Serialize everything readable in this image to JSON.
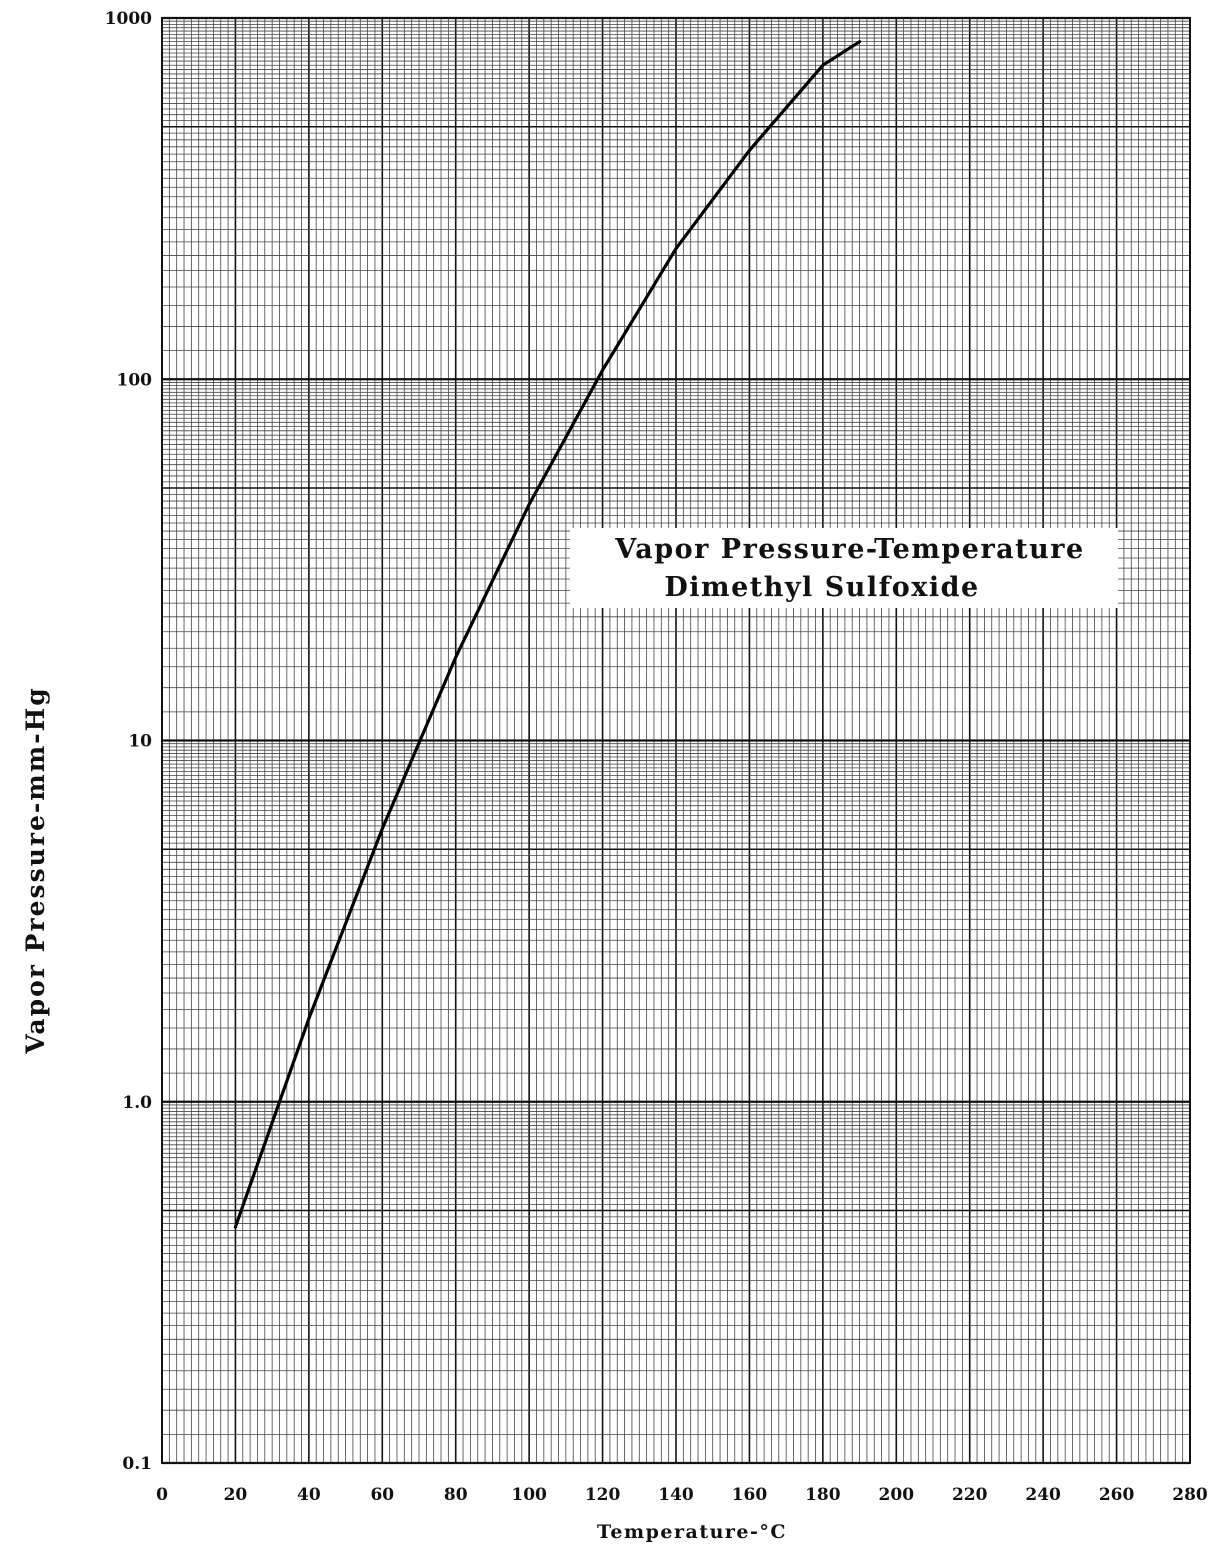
{
  "chart_data": {
    "type": "line",
    "title_lines": [
      "Vapor Pressure-Temperature",
      "Dimethyl Sulfoxide"
    ],
    "xlabel": "Temperature-°C",
    "ylabel": "Vapor Pressure-mm-Hg",
    "xlim": [
      0,
      280
    ],
    "ylim": [
      0.1,
      1000
    ],
    "y_scale": "log",
    "grid": true,
    "x_tick_labels": [
      "0",
      "20",
      "40",
      "60",
      "80",
      "100",
      "120",
      "140",
      "160",
      "180",
      "200",
      "220",
      "240",
      "260",
      "280"
    ],
    "x_ticks": [
      0,
      20,
      40,
      60,
      80,
      100,
      120,
      140,
      160,
      180,
      200,
      220,
      240,
      260,
      280
    ],
    "y_tick_labels": [
      "0.1",
      "1.0",
      "10",
      "100",
      "1000"
    ],
    "y_ticks": [
      0.1,
      1,
      10,
      100,
      1000
    ],
    "series": [
      {
        "x": [
          20,
          40,
          60,
          80,
          100,
          120,
          140,
          160,
          180,
          190
        ],
        "values": [
          0.45,
          1.7,
          5.7,
          17,
          45,
          106,
          230,
          430,
          740,
          860
        ]
      }
    ]
  },
  "colors": {
    "line": "#000000",
    "grid_minor": "#444444",
    "grid_major": "#111111",
    "title_box": "#ffffff"
  }
}
